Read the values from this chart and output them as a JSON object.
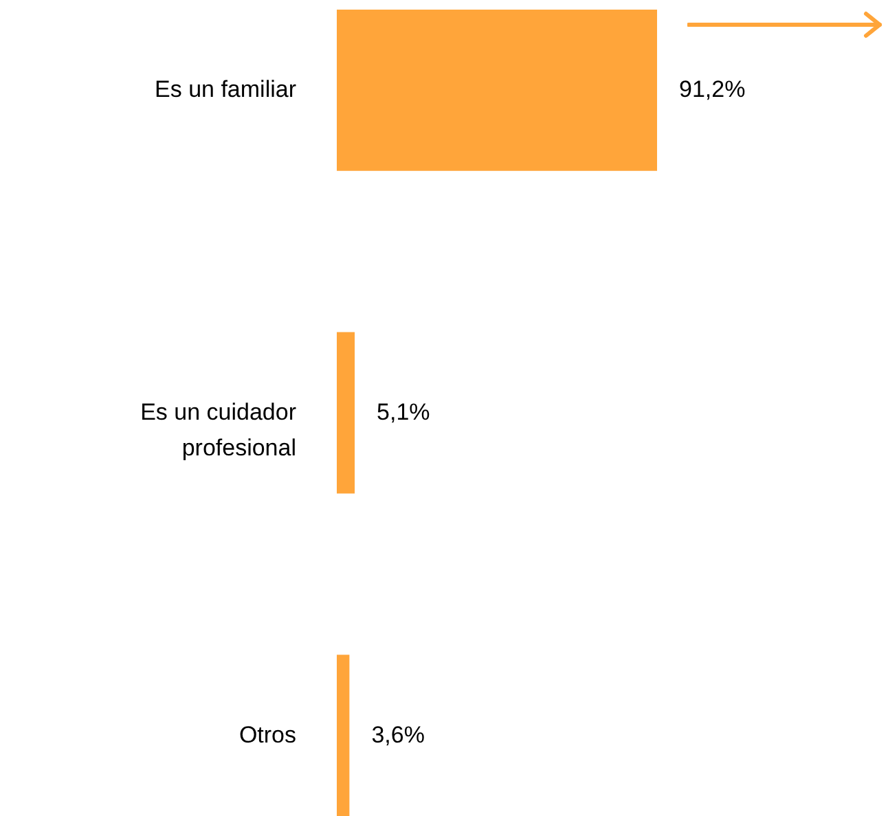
{
  "chart_data": {
    "type": "bar",
    "orientation": "horizontal",
    "categories": [
      "Es un familiar",
      "Es un cuidador profesional",
      "Otros"
    ],
    "values": [
      91.2,
      5.1,
      3.6
    ],
    "value_labels": [
      "91,2%",
      "5,1%",
      "3,6%"
    ],
    "color": "#ffa53a",
    "grid": false
  }
}
